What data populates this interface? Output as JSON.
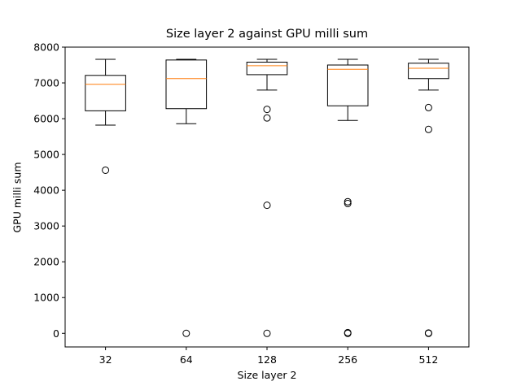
{
  "chart_data": {
    "type": "boxplot",
    "title": "Size layer 2 against GPU milli sum",
    "xlabel": "Size layer 2",
    "ylabel": "GPU milli sum",
    "categories": [
      "32",
      "64",
      "128",
      "256",
      "512"
    ],
    "ylim": [
      -380,
      8000
    ],
    "yticks": [
      0,
      1000,
      2000,
      3000,
      4000,
      5000,
      6000,
      7000,
      8000
    ],
    "grid": false,
    "median_color": "#ff7f0e",
    "boxes": [
      {
        "category": "32",
        "whisker_low": 5820,
        "q1": 6220,
        "median": 6960,
        "q3": 7210,
        "whisker_high": 7660,
        "fliers": [
          4560
        ]
      },
      {
        "category": "64",
        "whisker_low": 5860,
        "q1": 6280,
        "median": 7120,
        "q3": 7640,
        "whisker_high": 7660,
        "fliers": [
          0
        ]
      },
      {
        "category": "128",
        "whisker_low": 6800,
        "q1": 7230,
        "median": 7480,
        "q3": 7580,
        "whisker_high": 7660,
        "fliers": [
          6260,
          6020,
          3580,
          0
        ]
      },
      {
        "category": "256",
        "whisker_low": 5950,
        "q1": 6360,
        "median": 7380,
        "q3": 7500,
        "whisker_high": 7660,
        "fliers": [
          3680,
          3630,
          20,
          0
        ]
      },
      {
        "category": "512",
        "whisker_low": 6800,
        "q1": 7120,
        "median": 7410,
        "q3": 7550,
        "whisker_high": 7660,
        "fliers": [
          6310,
          5700,
          10,
          0
        ]
      }
    ]
  }
}
